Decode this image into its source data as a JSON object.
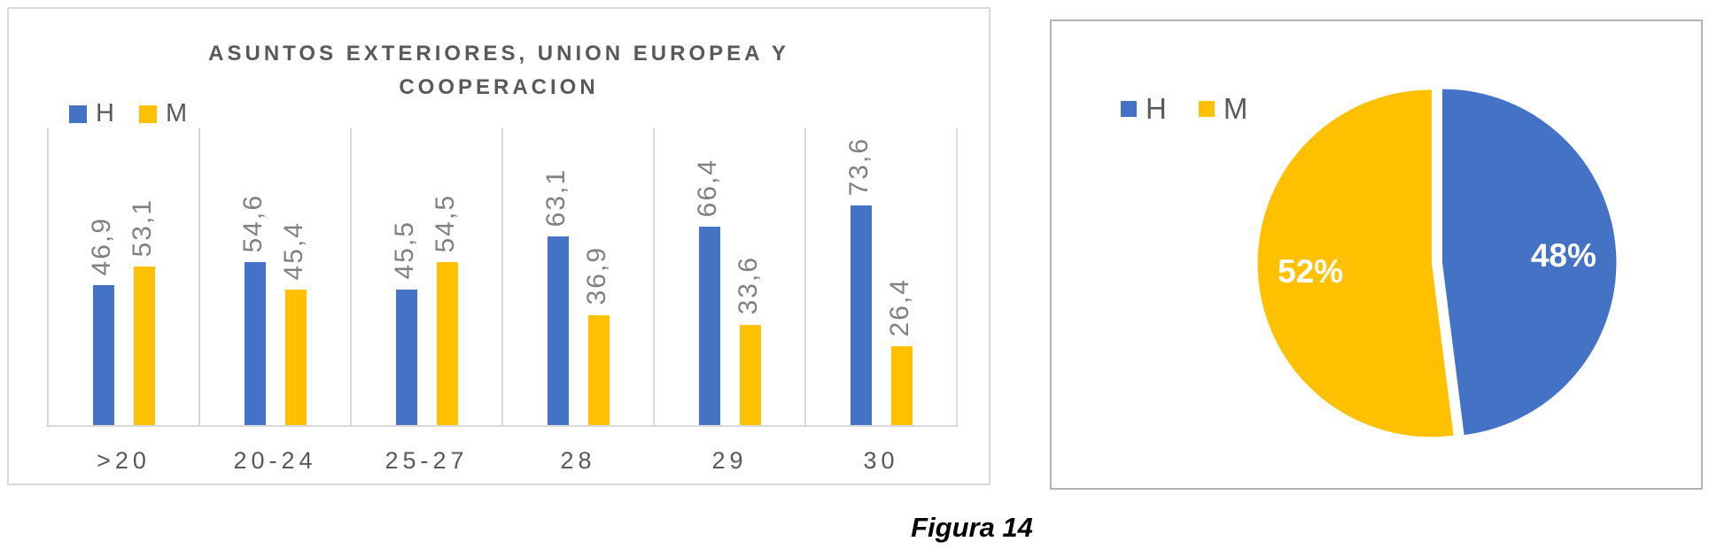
{
  "caption": "Figura 14",
  "colors": {
    "series_h": "#4472C4",
    "series_m": "#FFC000",
    "title_text": "#595959",
    "value_label_text": "#818181",
    "gridline": "#D9D9D9",
    "pie_label_text": "#FFFFFF"
  },
  "chart_data": [
    {
      "type": "bar",
      "title": "ASUNTOS EXTERIORES, UNION EUROPEA Y COOPERACION",
      "title_lines": [
        "ASUNTOS EXTERIORES, UNION EUROPEA Y",
        "COOPERACION"
      ],
      "categories": [
        ">20",
        "20-24",
        "25-27",
        "28",
        "29",
        "30"
      ],
      "series": [
        {
          "name": "H",
          "color": "#4472C4",
          "values": [
            46.9,
            54.6,
            45.5,
            63.1,
            66.4,
            73.6
          ]
        },
        {
          "name": "M",
          "color": "#FFC000",
          "values": [
            53.1,
            45.4,
            54.5,
            36.9,
            33.6,
            26.4
          ]
        }
      ],
      "value_labels": [
        [
          "46,9",
          "54,6",
          "45,5",
          "63,1",
          "66,4",
          "73,6"
        ],
        [
          "53,1",
          "45,4",
          "54,5",
          "36,9",
          "33,6",
          "26,4"
        ]
      ],
      "xlabel": "",
      "ylabel": "",
      "ylim": [
        0,
        100
      ],
      "grid": "vertical-only",
      "legend_position": "top-left"
    },
    {
      "type": "pie",
      "title": "",
      "slices": [
        {
          "name": "H",
          "label": "48%",
          "value": 48,
          "color": "#4472C4"
        },
        {
          "name": "M",
          "label": "52%",
          "value": 52,
          "color": "#FFC000"
        }
      ],
      "start_angle_deg": 0,
      "direction": "clockwise",
      "legend_position": "top-left"
    }
  ]
}
